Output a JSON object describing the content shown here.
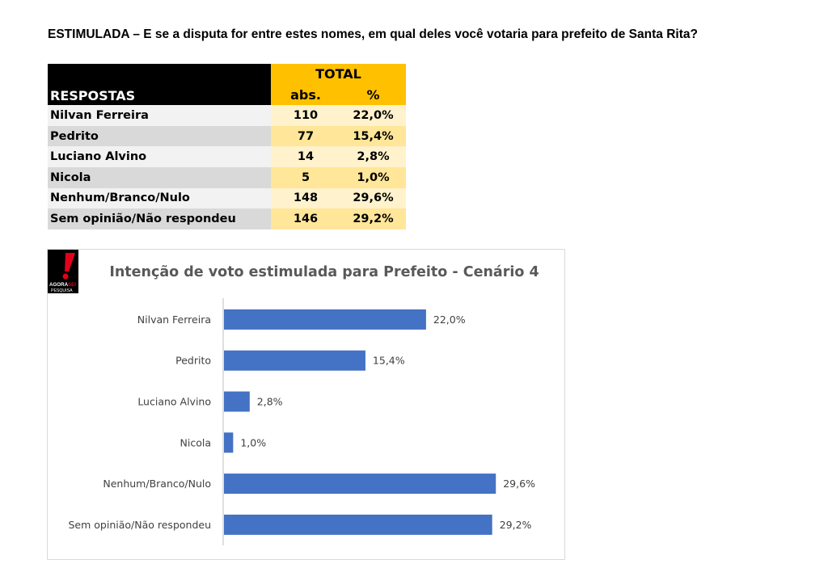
{
  "heading": "ESTIMULADA – E se a disputa for entre estes nomes, em qual deles você votaria para prefeito de Santa Rita?",
  "table": {
    "group_header": "TOTAL",
    "col_label": "RESPOSTAS",
    "col_abs": "abs.",
    "col_pct": "%",
    "rows": [
      {
        "name": "Nilvan Ferreira",
        "abs": "110",
        "pct": "22,0%"
      },
      {
        "name": "Pedrito",
        "abs": "77",
        "pct": "15,4%"
      },
      {
        "name": "Luciano Alvino",
        "abs": "14",
        "pct": "2,8%"
      },
      {
        "name": "Nicola",
        "abs": "5",
        "pct": "1,0%"
      },
      {
        "name": "Nenhum/Branco/Nulo",
        "abs": "148",
        "pct": "29,6%"
      },
      {
        "name": "Sem opinião/Não respondeu",
        "abs": "146",
        "pct": "29,2%"
      }
    ]
  },
  "logo": {
    "text_top": "AGORA",
    "text_red": "SEI",
    "text_bottom": "PESQUISA"
  },
  "chart_data": {
    "type": "bar",
    "orientation": "horizontal",
    "title": "Intenção de voto estimulada para Prefeito - Cenário 4",
    "categories": [
      "Nilvan Ferreira",
      "Pedrito",
      "Luciano Alvino",
      "Nicola",
      "Nenhum/Branco/Nulo",
      "Sem opinião/Não respondeu"
    ],
    "values": [
      22.0,
      15.4,
      2.8,
      1.0,
      29.6,
      29.2
    ],
    "value_labels": [
      "22,0%",
      "15,4%",
      "2,8%",
      "1,0%",
      "29,6%",
      "29,2%"
    ],
    "unit": "%",
    "bar_color": "#4472c4",
    "xlim": [
      0,
      32
    ],
    "grid": false,
    "legend": "none"
  }
}
